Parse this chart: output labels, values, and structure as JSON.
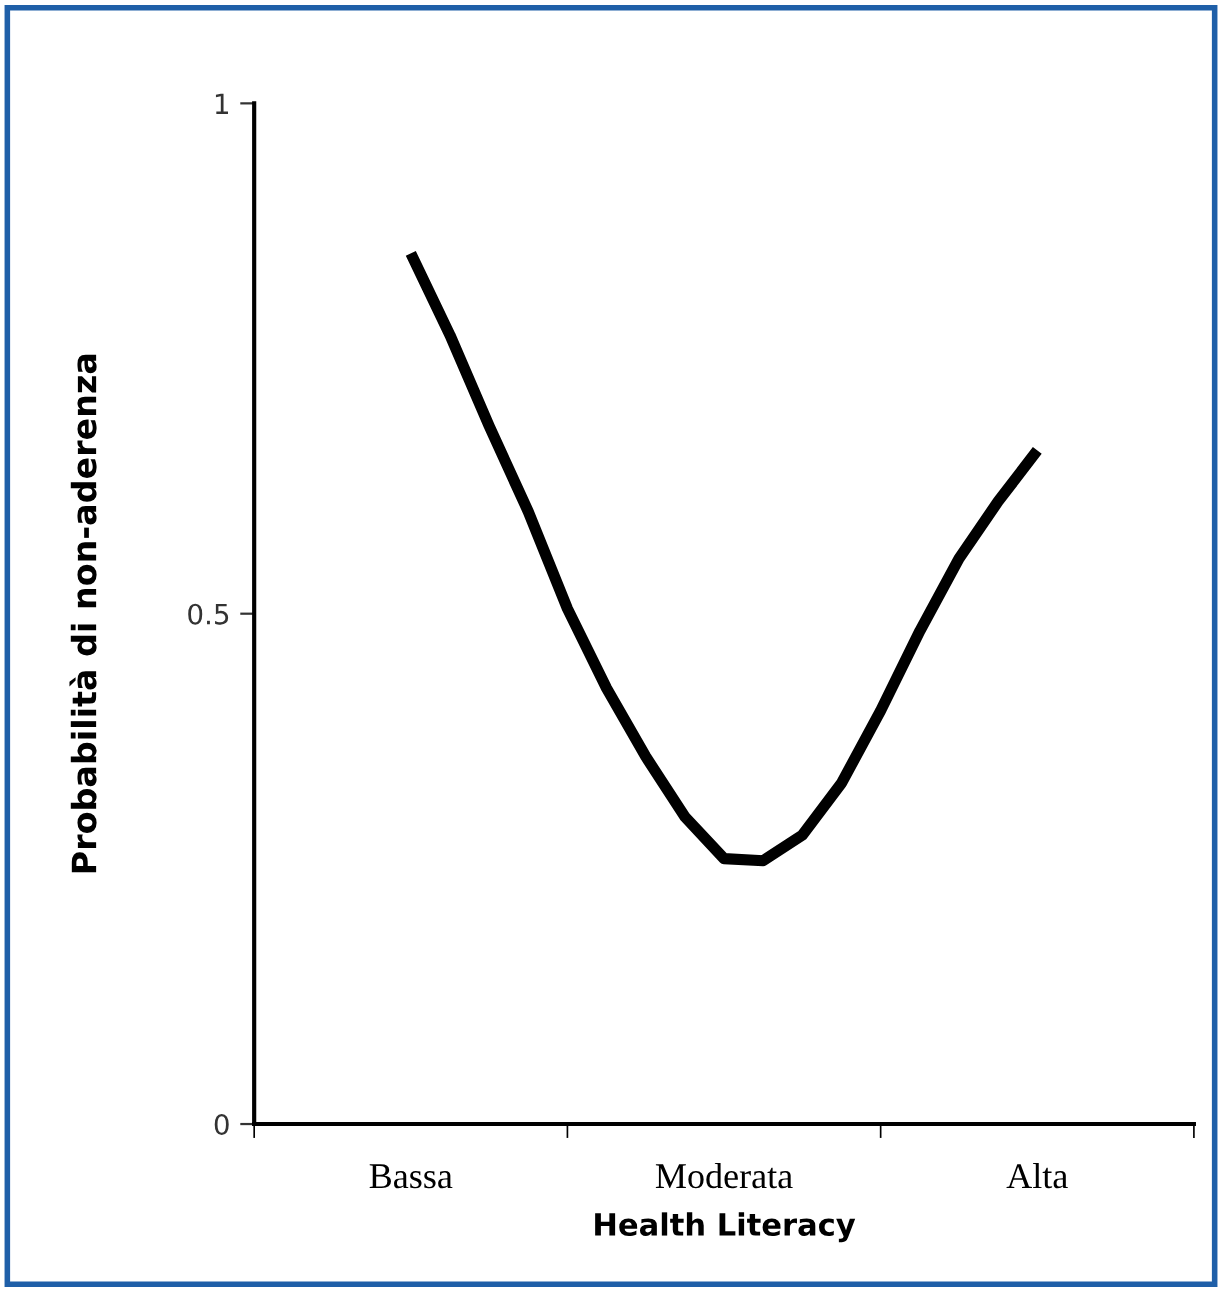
{
  "chart_data": {
    "type": "line",
    "xlabel": "Health Literacy",
    "ylabel": "Probabilità di non-aderenza",
    "categories": [
      null,
      null,
      null,
      null,
      "Bassa",
      null,
      null,
      null,
      null,
      null,
      null,
      null,
      "Moderata",
      null,
      null,
      null,
      null,
      null,
      null,
      null,
      "Alta",
      null,
      null,
      null,
      null
    ],
    "series": [
      {
        "color": "#000000",
        "values": [
          null,
          null,
          null,
          null,
          0.853,
          0.773,
          0.684,
          0.6,
          0.505,
          0.427,
          0.36,
          0.301,
          0.26,
          0.258,
          0.283,
          0.334,
          0.405,
          0.483,
          0.554,
          0.61,
          0.66,
          null,
          null,
          null,
          null
        ]
      }
    ],
    "ylim": [
      0,
      1
    ],
    "yticks": [
      0,
      0.5,
      1
    ],
    "grid": false,
    "legend": false,
    "marker": "none",
    "line_style": "solid"
  }
}
